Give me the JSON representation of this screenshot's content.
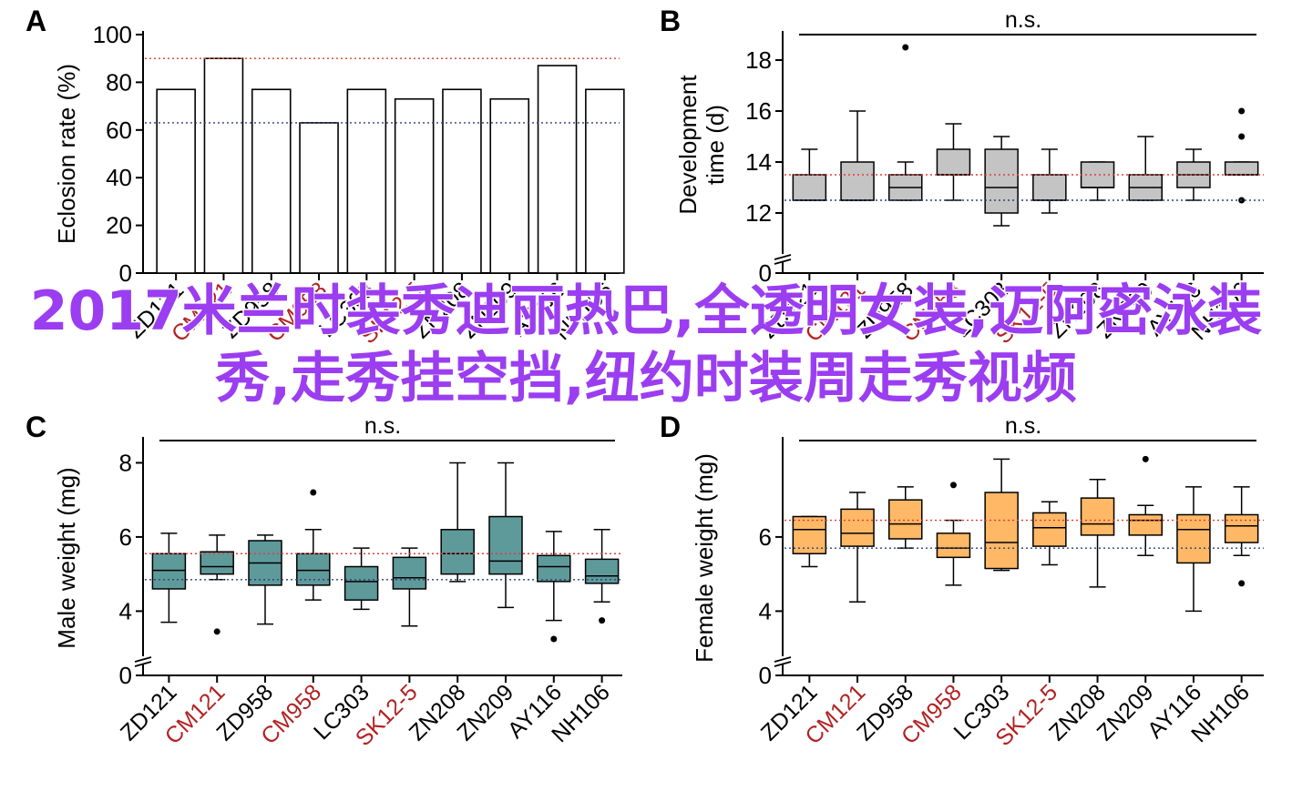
{
  "categories": [
    "ZD121",
    "CM121",
    "ZD958",
    "CM958",
    "LC303",
    "SK12-5",
    "ZN208",
    "ZN209",
    "AY116",
    "NH106"
  ],
  "category_colors": [
    "#000000",
    "#b22222",
    "#000000",
    "#b22222",
    "#000000",
    "#b22222",
    "#000000",
    "#000000",
    "#000000",
    "#000000"
  ],
  "overlay_text": "2017米兰时装秀迪丽热巴,全透明女装,迈阿密泳装秀,走秀挂空挡,纽约时装周走秀视频",
  "overlay_color": "#9b3df0",
  "chart_data": [
    {
      "panel": "A",
      "type": "bar",
      "ylabel": "Eclosion rate (%)",
      "ylim": [
        0,
        100
      ],
      "yticks": [
        0,
        20,
        40,
        60,
        80,
        100
      ],
      "axis_break": false,
      "annotation": "",
      "values": [
        77,
        90,
        77,
        63,
        77,
        73,
        77,
        73,
        87,
        77
      ],
      "ref_lines": [
        {
          "value": 90,
          "color": "#e53935",
          "style": "dotted"
        },
        {
          "value": 63,
          "color": "#2c3e7a",
          "style": "dotted"
        }
      ],
      "bar_color": "#ffffff"
    },
    {
      "panel": "B",
      "type": "box",
      "ylabel": "Development time (d)",
      "ylim": [
        11,
        19
      ],
      "yticks": [
        0,
        12,
        14,
        16,
        18
      ],
      "axis_break": true,
      "annotation": "n.s.",
      "box_color": "#c4c4c4",
      "ref_lines": [
        {
          "value": 13.5,
          "color": "#e53935",
          "style": "dotted"
        },
        {
          "value": 12.5,
          "color": "#2c3e7a",
          "style": "dotted"
        }
      ],
      "boxes": [
        {
          "min": 12.5,
          "q1": 12.5,
          "median": 12.5,
          "q3": 13.5,
          "max": 14.5,
          "outliers": []
        },
        {
          "min": 12.5,
          "q1": 12.5,
          "median": 12.5,
          "q3": 14.0,
          "max": 16.0,
          "outliers": []
        },
        {
          "min": 12.5,
          "q1": 12.5,
          "median": 13.0,
          "q3": 13.5,
          "max": 14.0,
          "outliers": [
            18.5
          ]
        },
        {
          "min": 12.5,
          "q1": 13.5,
          "median": 13.5,
          "q3": 14.5,
          "max": 15.5,
          "outliers": []
        },
        {
          "min": 11.5,
          "q1": 12.0,
          "median": 13.0,
          "q3": 14.5,
          "max": 15.0,
          "outliers": []
        },
        {
          "min": 12.0,
          "q1": 12.5,
          "median": 12.5,
          "q3": 13.5,
          "max": 14.5,
          "outliers": []
        },
        {
          "min": 12.5,
          "q1": 13.0,
          "median": 13.0,
          "q3": 14.0,
          "max": 14.0,
          "outliers": []
        },
        {
          "min": 12.5,
          "q1": 12.5,
          "median": 13.0,
          "q3": 13.5,
          "max": 15.0,
          "outliers": []
        },
        {
          "min": 12.5,
          "q1": 13.0,
          "median": 13.5,
          "q3": 14.0,
          "max": 14.5,
          "outliers": []
        },
        {
          "min": 13.5,
          "q1": 13.5,
          "median": 13.5,
          "q3": 14.0,
          "max": 14.0,
          "outliers": [
            16.0,
            15.0,
            12.5
          ]
        }
      ]
    },
    {
      "panel": "C",
      "type": "box",
      "ylabel": "Male weight (mg)",
      "ylim": [
        3.2,
        8.6
      ],
      "yticks": [
        0,
        4,
        6,
        8
      ],
      "axis_break": true,
      "annotation": "n.s.",
      "box_color": "#5e9a9a",
      "ref_lines": [
        {
          "value": 5.55,
          "color": "#e53935",
          "style": "dotted"
        },
        {
          "value": 4.85,
          "color": "#2c3e7a",
          "style": "dotted"
        }
      ],
      "boxes": [
        {
          "min": 3.7,
          "q1": 4.6,
          "median": 5.1,
          "q3": 5.55,
          "max": 6.1,
          "outliers": []
        },
        {
          "min": 4.85,
          "q1": 5.0,
          "median": 5.2,
          "q3": 5.6,
          "max": 6.05,
          "outliers": [
            3.45
          ]
        },
        {
          "min": 3.65,
          "q1": 4.7,
          "median": 5.3,
          "q3": 5.9,
          "max": 6.05,
          "outliers": []
        },
        {
          "min": 4.3,
          "q1": 4.7,
          "median": 5.1,
          "q3": 5.55,
          "max": 6.2,
          "outliers": [
            7.2
          ]
        },
        {
          "min": 4.05,
          "q1": 4.3,
          "median": 4.8,
          "q3": 5.2,
          "max": 5.7,
          "outliers": []
        },
        {
          "min": 3.6,
          "q1": 4.6,
          "median": 4.9,
          "q3": 5.45,
          "max": 5.7,
          "outliers": []
        },
        {
          "min": 4.8,
          "q1": 5.0,
          "median": 5.55,
          "q3": 6.2,
          "max": 8.0,
          "outliers": []
        },
        {
          "min": 4.1,
          "q1": 5.0,
          "median": 5.35,
          "q3": 6.55,
          "max": 8.0,
          "outliers": []
        },
        {
          "min": 3.75,
          "q1": 4.8,
          "median": 5.2,
          "q3": 5.5,
          "max": 6.15,
          "outliers": [
            3.25
          ]
        },
        {
          "min": 4.25,
          "q1": 4.75,
          "median": 4.95,
          "q3": 5.4,
          "max": 6.2,
          "outliers": [
            3.75
          ]
        }
      ]
    },
    {
      "panel": "D",
      "type": "box",
      "ylabel": "Female weight (mg)",
      "ylim": [
        3.2,
        8.6
      ],
      "yticks": [
        0,
        4,
        6
      ],
      "axis_break": true,
      "annotation": "n.s.",
      "box_color": "#ffb865",
      "ref_lines": [
        {
          "value": 6.45,
          "color": "#e53935",
          "style": "dotted"
        },
        {
          "value": 5.7,
          "color": "#2c3e7a",
          "style": "dotted"
        }
      ],
      "boxes": [
        {
          "min": 5.2,
          "q1": 5.55,
          "median": 6.2,
          "q3": 6.55,
          "max": 6.55,
          "outliers": []
        },
        {
          "min": 4.25,
          "q1": 5.75,
          "median": 6.1,
          "q3": 6.75,
          "max": 7.2,
          "outliers": []
        },
        {
          "min": 5.7,
          "q1": 5.95,
          "median": 6.35,
          "q3": 7.0,
          "max": 7.35,
          "outliers": []
        },
        {
          "min": 4.7,
          "q1": 5.45,
          "median": 5.7,
          "q3": 6.1,
          "max": 6.45,
          "outliers": [
            7.4
          ]
        },
        {
          "min": 5.1,
          "q1": 5.15,
          "median": 5.85,
          "q3": 7.2,
          "max": 8.1,
          "outliers": []
        },
        {
          "min": 5.25,
          "q1": 5.75,
          "median": 6.25,
          "q3": 6.65,
          "max": 6.95,
          "outliers": []
        },
        {
          "min": 4.65,
          "q1": 6.05,
          "median": 6.35,
          "q3": 7.05,
          "max": 7.55,
          "outliers": []
        },
        {
          "min": 5.5,
          "q1": 6.05,
          "median": 6.45,
          "q3": 6.6,
          "max": 6.85,
          "outliers": [
            8.1
          ]
        },
        {
          "min": 4.0,
          "q1": 5.3,
          "median": 6.2,
          "q3": 6.6,
          "max": 7.35,
          "outliers": []
        },
        {
          "min": 5.5,
          "q1": 5.85,
          "median": 6.3,
          "q3": 6.6,
          "max": 7.35,
          "outliers": [
            4.75
          ]
        }
      ]
    }
  ]
}
